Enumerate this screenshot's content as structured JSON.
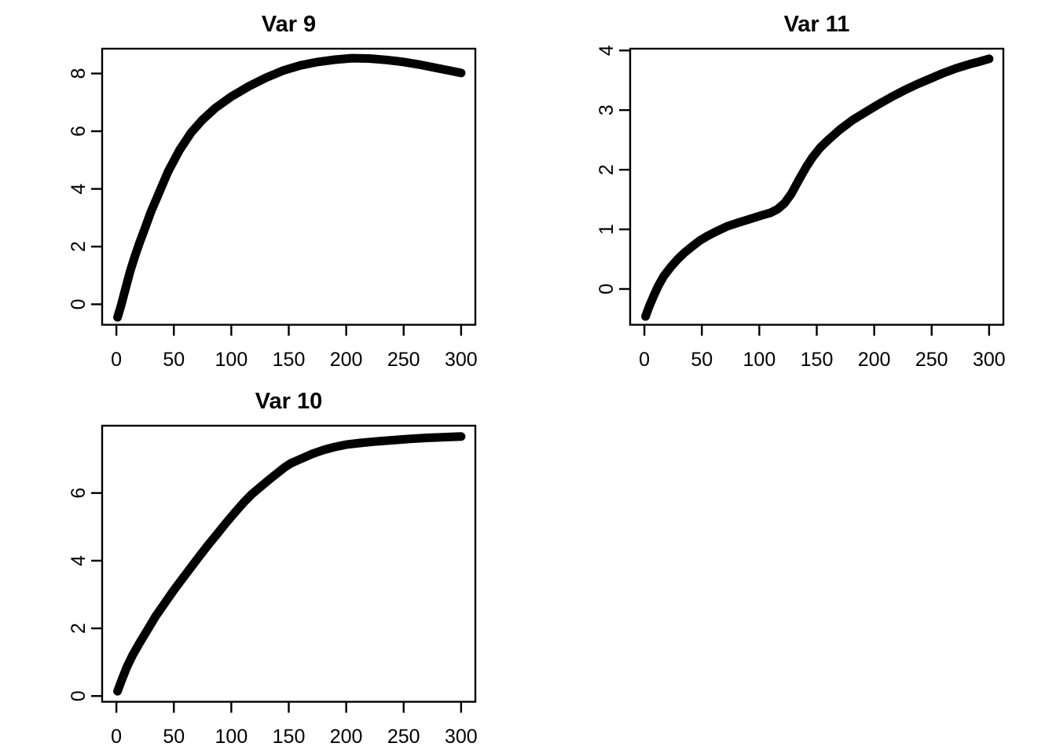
{
  "page": {
    "background": "#ffffff",
    "foreground": "#000000"
  },
  "figure": {
    "rows": 2,
    "cols": 2,
    "empty_panels": [
      {
        "row": 1,
        "col": 1
      }
    ]
  },
  "chart_data": [
    {
      "type": "scatter",
      "title": "Var 9",
      "panel": {
        "row": 0,
        "col": 0
      },
      "xlabel": "",
      "ylabel": "",
      "x_ticks": [
        0,
        50,
        100,
        150,
        200,
        250,
        300
      ],
      "y_ticks": [
        0,
        2,
        4,
        6,
        8
      ],
      "xlim": [
        -12.4,
        312.4
      ],
      "ylim": [
        -0.71,
        8.86
      ],
      "grid": false,
      "marker": "thick-black-point-band",
      "color": "#000000",
      "points": [
        [
          1,
          -0.45
        ],
        [
          4,
          -0.05
        ],
        [
          8,
          0.55
        ],
        [
          12,
          1.15
        ],
        [
          16,
          1.65
        ],
        [
          20,
          2.12
        ],
        [
          25,
          2.65
        ],
        [
          30,
          3.2
        ],
        [
          37,
          3.85
        ],
        [
          45,
          4.6
        ],
        [
          55,
          5.35
        ],
        [
          65,
          5.95
        ],
        [
          75,
          6.4
        ],
        [
          86,
          6.8
        ],
        [
          100,
          7.2
        ],
        [
          115,
          7.55
        ],
        [
          130,
          7.85
        ],
        [
          145,
          8.1
        ],
        [
          160,
          8.28
        ],
        [
          175,
          8.4
        ],
        [
          190,
          8.48
        ],
        [
          205,
          8.53
        ],
        [
          220,
          8.52
        ],
        [
          235,
          8.47
        ],
        [
          250,
          8.4
        ],
        [
          265,
          8.3
        ],
        [
          280,
          8.18
        ],
        [
          290,
          8.1
        ],
        [
          300,
          8.02
        ]
      ]
    },
    {
      "type": "scatter",
      "title": "Var 11",
      "panel": {
        "row": 0,
        "col": 1
      },
      "xlabel": "",
      "ylabel": "",
      "x_ticks": [
        0,
        50,
        100,
        150,
        200,
        250,
        300
      ],
      "y_ticks": [
        0,
        1,
        2,
        3,
        4
      ],
      "xlim": [
        -12.4,
        312.4
      ],
      "ylim": [
        -0.6,
        4.03
      ],
      "grid": false,
      "marker": "thick-black-point-band",
      "color": "#000000",
      "points": [
        [
          1,
          -0.46
        ],
        [
          4,
          -0.3
        ],
        [
          8,
          -0.12
        ],
        [
          12,
          0.05
        ],
        [
          17,
          0.22
        ],
        [
          23,
          0.37
        ],
        [
          29,
          0.5
        ],
        [
          35,
          0.61
        ],
        [
          42,
          0.72
        ],
        [
          48,
          0.81
        ],
        [
          55,
          0.89
        ],
        [
          62,
          0.96
        ],
        [
          72,
          1.05
        ],
        [
          83,
          1.12
        ],
        [
          93,
          1.18
        ],
        [
          103,
          1.24
        ],
        [
          110,
          1.28
        ],
        [
          116,
          1.34
        ],
        [
          122,
          1.44
        ],
        [
          128,
          1.6
        ],
        [
          135,
          1.85
        ],
        [
          141,
          2.05
        ],
        [
          146,
          2.2
        ],
        [
          153,
          2.37
        ],
        [
          160,
          2.5
        ],
        [
          170,
          2.67
        ],
        [
          181,
          2.83
        ],
        [
          192,
          2.96
        ],
        [
          203,
          3.09
        ],
        [
          215,
          3.22
        ],
        [
          227,
          3.34
        ],
        [
          238,
          3.44
        ],
        [
          249,
          3.53
        ],
        [
          260,
          3.62
        ],
        [
          271,
          3.7
        ],
        [
          283,
          3.77
        ],
        [
          291,
          3.81
        ],
        [
          300,
          3.86
        ]
      ]
    },
    {
      "type": "scatter",
      "title": "Var 10",
      "panel": {
        "row": 1,
        "col": 0
      },
      "xlabel": "",
      "ylabel": "",
      "x_ticks": [
        0,
        50,
        100,
        150,
        200,
        250,
        300
      ],
      "y_ticks": [
        0,
        2,
        4,
        6
      ],
      "xlim": [
        -12.4,
        312.4
      ],
      "ylim": [
        -0.17,
        7.99
      ],
      "grid": false,
      "marker": "thick-black-point-band",
      "color": "#000000",
      "points": [
        [
          1,
          0.14
        ],
        [
          5,
          0.5
        ],
        [
          9,
          0.85
        ],
        [
          14,
          1.2
        ],
        [
          20,
          1.56
        ],
        [
          27,
          1.95
        ],
        [
          34,
          2.35
        ],
        [
          42,
          2.74
        ],
        [
          50,
          3.13
        ],
        [
          57,
          3.45
        ],
        [
          64,
          3.76
        ],
        [
          72,
          4.12
        ],
        [
          80,
          4.47
        ],
        [
          88,
          4.8
        ],
        [
          95,
          5.1
        ],
        [
          103,
          5.42
        ],
        [
          111,
          5.73
        ],
        [
          118,
          5.97
        ],
        [
          125,
          6.17
        ],
        [
          132,
          6.37
        ],
        [
          139,
          6.56
        ],
        [
          146,
          6.75
        ],
        [
          152,
          6.88
        ],
        [
          160,
          7.0
        ],
        [
          170,
          7.15
        ],
        [
          180,
          7.27
        ],
        [
          190,
          7.36
        ],
        [
          200,
          7.43
        ],
        [
          212,
          7.48
        ],
        [
          225,
          7.52
        ],
        [
          240,
          7.56
        ],
        [
          255,
          7.6
        ],
        [
          270,
          7.63
        ],
        [
          285,
          7.65
        ],
        [
          300,
          7.67
        ]
      ]
    }
  ]
}
